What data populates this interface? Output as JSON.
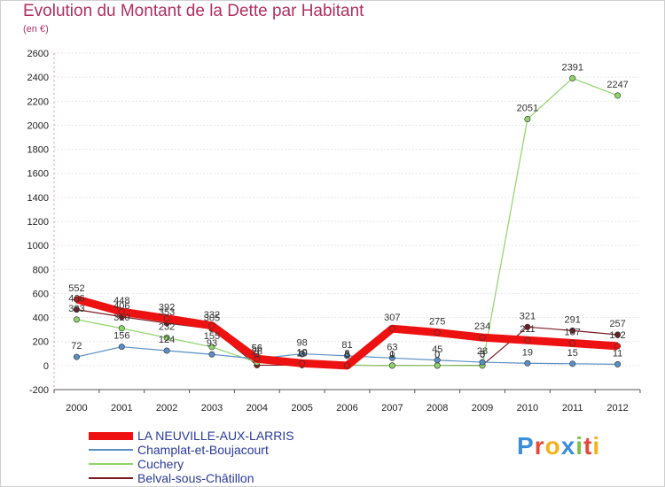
{
  "title": "Evolution du Montant de la Dette par Habitant",
  "subtitle": "(en €)",
  "logo": {
    "text": "Proxiti",
    "colors": [
      "#3a8fd8",
      "#e24a3b",
      "#f2b21e",
      "#3a8fd8",
      "#7cc242",
      "#e24a3b",
      "#f2b21e"
    ]
  },
  "chart_data": {
    "type": "line",
    "x": [
      "2000",
      "2001",
      "2002",
      "2003",
      "2004",
      "2005",
      "2006",
      "2007",
      "2008",
      "2009",
      "2010",
      "2011",
      "2012"
    ],
    "ylim": [
      -200,
      2600
    ],
    "yticks": [
      -200,
      0,
      200,
      400,
      600,
      800,
      1000,
      1200,
      1400,
      1600,
      1800,
      2000,
      2200,
      2400,
      2600
    ],
    "grid": true,
    "legend_position": "bottom-left",
    "series": [
      {
        "name": "Belval-sous-Châtillon",
        "color": "#7a1c22",
        "width": 1.2,
        "values": [
          466,
          406,
          353,
          305,
          3,
          3,
          3,
          1,
          0,
          3,
          321,
          291,
          257
        ],
        "labels": [
          "466",
          "406",
          "353",
          "305",
          "3",
          "3",
          "3",
          "1",
          "0",
          "3",
          "321",
          "291",
          "257"
        ]
      },
      {
        "name": "Cuchery",
        "color": "#8fd46a",
        "width": 1.2,
        "values": [
          383,
          310,
          232,
          155,
          26,
          10,
          5,
          0,
          0,
          0,
          2051,
          2391,
          2247
        ],
        "labels": [
          "383",
          "310",
          "232",
          "155",
          "26",
          "10",
          "5",
          "0",
          "0",
          "0",
          "2051",
          "2391",
          "2247"
        ]
      },
      {
        "name": "Champlat-et-Boujacourt",
        "color": "#5a8fc4",
        "width": 1.2,
        "values": [
          72,
          156,
          124,
          93,
          56,
          98,
          81,
          63,
          45,
          28,
          19,
          15,
          11
        ],
        "labels": [
          "72",
          "156",
          "124",
          "93",
          "56",
          "98",
          "81",
          "63",
          "45",
          "28",
          "19",
          "15",
          "11"
        ]
      },
      {
        "name": "LA NEUVILLE-AUX-LARRIS",
        "color": "#ee1111",
        "width": 9,
        "values": [
          552,
          448,
          392,
          332,
          56,
          19,
          0,
          307,
          275,
          234,
          211,
          187,
          162
        ],
        "labels": [
          "552",
          "448",
          "392",
          "332",
          "56",
          "19",
          "0",
          "307",
          "275",
          "234",
          "211",
          "187",
          "162"
        ]
      }
    ],
    "legend": [
      {
        "name": "LA NEUVILLE-AUX-LARRIS",
        "color": "#ee1111",
        "width": 9
      },
      {
        "name": "Champlat-et-Boujacourt",
        "color": "#5a8fc4",
        "width": 2
      },
      {
        "name": "Cuchery",
        "color": "#8fd46a",
        "width": 2
      },
      {
        "name": "Belval-sous-Châtillon",
        "color": "#7a1c22",
        "width": 2
      }
    ]
  }
}
